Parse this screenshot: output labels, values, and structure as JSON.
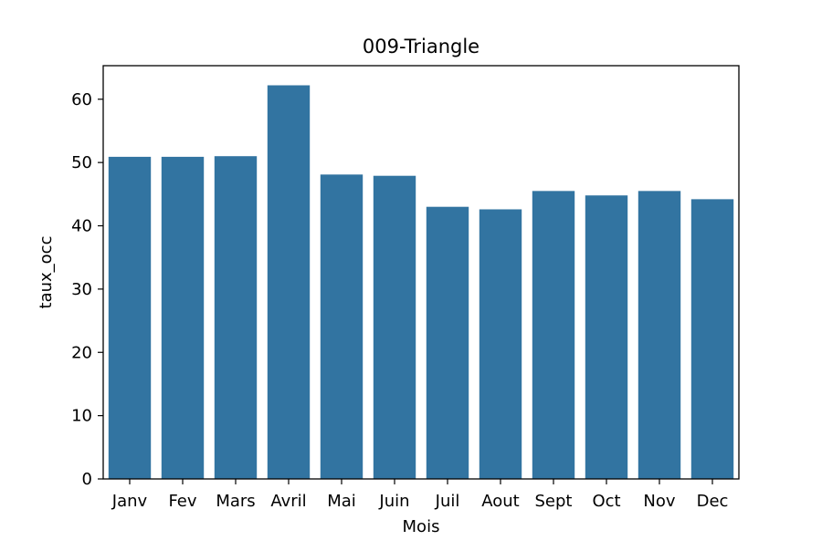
{
  "chart_data": {
    "type": "bar",
    "title": "009-Triangle",
    "xlabel": "Mois",
    "ylabel": "taux_occ",
    "categories": [
      "Janv",
      "Fev",
      "Mars",
      "Avril",
      "Mai",
      "Juin",
      "Juil",
      "Aout",
      "Sept",
      "Oct",
      "Nov",
      "Dec"
    ],
    "values": [
      50.9,
      50.9,
      51.0,
      62.2,
      48.1,
      47.9,
      43.0,
      42.6,
      45.5,
      44.8,
      45.5,
      44.2
    ],
    "ylim": [
      0,
      65.3
    ],
    "yticks": [
      0,
      10,
      20,
      30,
      40,
      50,
      60
    ],
    "grid": false,
    "bar_color": "#3274a1"
  }
}
